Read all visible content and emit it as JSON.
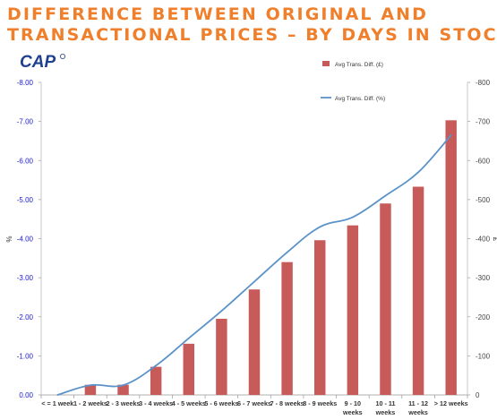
{
  "header": {
    "title_line1": "DIFFERENCE BETWEEN ORIGINAL AND",
    "title_line2": "TRANSACTIONAL PRICES – BY DAYS IN STOCK",
    "logo_text": "CAP",
    "title_color": "#f07f2c",
    "logo_color": "#1f3f8f"
  },
  "chart_data": {
    "type": "bar",
    "categories": [
      [
        "< = 1 week"
      ],
      [
        "1 - 2 weeks"
      ],
      [
        "2 - 3 weeks"
      ],
      [
        "3 - 4 weeks"
      ],
      [
        "4 - 5 weeks"
      ],
      [
        "5 - 6 weeks"
      ],
      [
        "6 - 7 weeks"
      ],
      [
        "7 - 8 weeks"
      ],
      [
        "8 - 9 weeks"
      ],
      [
        "9 - 10",
        "weeks"
      ],
      [
        "10 - 11",
        "weeks"
      ],
      [
        "11 - 12",
        "weeks"
      ],
      [
        "> 12 weeks"
      ]
    ],
    "series": [
      {
        "name": "Avg Trans. Diff. (£)",
        "type": "bar",
        "axis": "right",
        "color": "#c75b5a",
        "values": [
          0,
          -26,
          -26,
          -72,
          -131,
          -195,
          -270,
          -340,
          -396,
          -434,
          -490,
          -533,
          -703
        ]
      },
      {
        "name": "Avg Trans. Diff. (%)",
        "type": "line",
        "axis": "left",
        "color": "#5b93c9",
        "values": [
          0.0,
          -0.25,
          -0.25,
          -0.75,
          -1.45,
          -2.15,
          -2.9,
          -3.65,
          -4.3,
          -4.55,
          -5.1,
          -5.7,
          -6.65
        ]
      }
    ],
    "y_left": {
      "label": "%",
      "ticks": [
        "0.00",
        "-1.00",
        "-2.00",
        "-3.00",
        "-4.00",
        "-5.00",
        "-6.00",
        "-7.00",
        "-8.00"
      ],
      "range": [
        0,
        -8
      ],
      "tick_color": "#1a1ad0"
    },
    "y_right": {
      "label": "£",
      "ticks": [
        "0",
        "-100",
        "-200",
        "-300",
        "-400",
        "-500",
        "-600",
        "-700",
        "-800"
      ],
      "range": [
        0,
        -800
      ]
    },
    "legend_position": "top-right"
  }
}
